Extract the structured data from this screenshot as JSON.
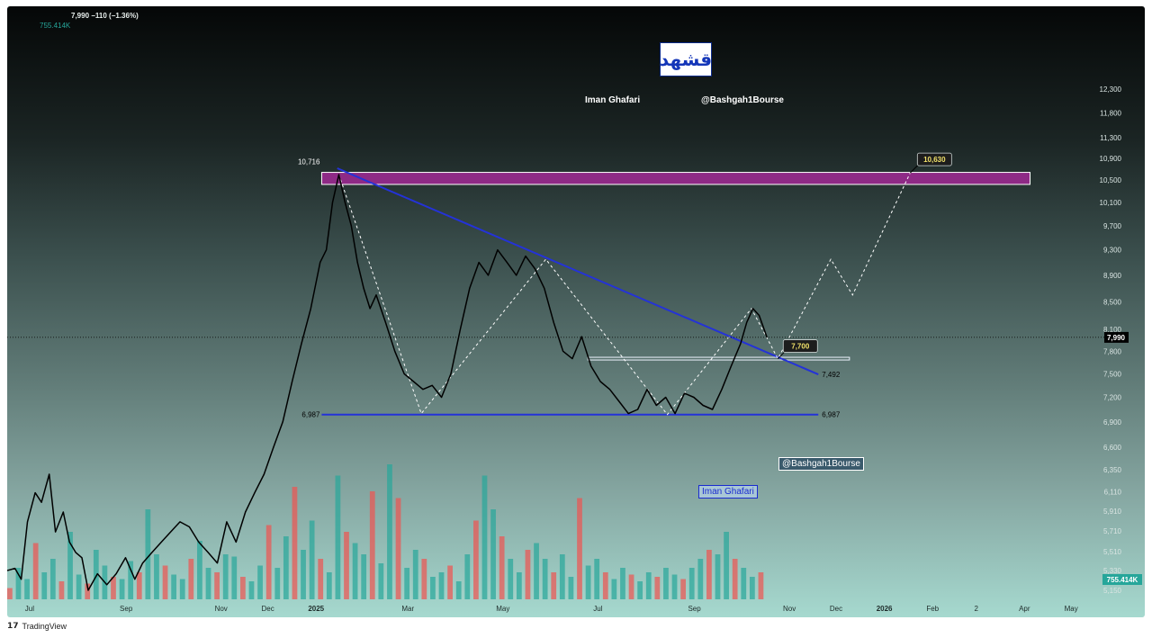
{
  "header": {
    "price_change": "7,990  −110 (−1.36%)",
    "volume": "755.414K"
  },
  "logo_text": "قشهد",
  "watermarks": {
    "author": "Iman Ghafari",
    "channel": "@Bashgah1Bourse",
    "channel_box": "@Bashgah1Bourse",
    "author_box": "Iman Ghafari"
  },
  "branding": {
    "icon": "tradingview-icon",
    "text": "TradingView"
  },
  "colors": {
    "price": "#000000",
    "trend_line": "#2432d8",
    "resistance_zone": "#8e2a86",
    "projection": "#ffffff",
    "vol_up": "#26a69a",
    "vol_down": "#ef5350",
    "current_price_tag": "#000000"
  },
  "chart_data": {
    "type": "line",
    "title": "",
    "x_axis_labels": [
      "Jul",
      "Sep",
      "Nov",
      "Dec",
      "2025",
      "Mar",
      "May",
      "Jul",
      "Sep",
      "Nov",
      "Dec",
      "2026",
      "Feb",
      "2",
      "Apr",
      "May"
    ],
    "y_axis_labels": [
      "12,300",
      "11,800",
      "11,300",
      "10,900",
      "10,500",
      "10,100",
      "9,700",
      "9,300",
      "8,900",
      "8,500",
      "8,100",
      "7,800",
      "7,500",
      "7,200",
      "6,900",
      "6,600",
      "6,350",
      "6,110",
      "5,910",
      "5,710",
      "5,510",
      "5,330",
      "5,150"
    ],
    "y_log_scale": true,
    "current_price": "7,990",
    "current_volume": "755.414K",
    "series": [
      {
        "values": [
          [
            "2024-06-27",
            5330
          ],
          [
            "2024-07-02",
            5350
          ],
          [
            "2024-07-06",
            5250
          ],
          [
            "2024-07-10",
            5800
          ],
          [
            "2024-07-15",
            6100
          ],
          [
            "2024-07-19",
            6000
          ],
          [
            "2024-07-24",
            6300
          ],
          [
            "2024-07-28",
            5700
          ],
          [
            "2024-08-02",
            5900
          ],
          [
            "2024-08-06",
            5600
          ],
          [
            "2024-08-10",
            5500
          ],
          [
            "2024-08-14",
            5450
          ],
          [
            "2024-08-18",
            5150
          ],
          [
            "2024-08-24",
            5300
          ],
          [
            "2024-08-30",
            5200
          ],
          [
            "2024-09-05",
            5300
          ],
          [
            "2024-09-11",
            5450
          ],
          [
            "2024-09-17",
            5250
          ],
          [
            "2024-09-22",
            5400
          ],
          [
            "2024-09-28",
            5500
          ],
          [
            "2024-10-04",
            5600
          ],
          [
            "2024-10-10",
            5700
          ],
          [
            "2024-10-16",
            5800
          ],
          [
            "2024-10-22",
            5750
          ],
          [
            "2024-10-28",
            5600
          ],
          [
            "2024-11-03",
            5500
          ],
          [
            "2024-11-09",
            5400
          ],
          [
            "2024-11-15",
            5800
          ],
          [
            "2024-11-21",
            5600
          ],
          [
            "2024-11-27",
            5900
          ],
          [
            "2024-12-03",
            6100
          ],
          [
            "2024-12-09",
            6300
          ],
          [
            "2024-12-15",
            6600
          ],
          [
            "2024-12-21",
            6900
          ],
          [
            "2024-12-27",
            7400
          ],
          [
            "2025-01-02",
            7900
          ],
          [
            "2025-01-08",
            8400
          ],
          [
            "2025-01-14",
            9100
          ],
          [
            "2025-01-18",
            9300
          ],
          [
            "2025-01-22",
            10100
          ],
          [
            "2025-01-26",
            10600
          ],
          [
            "2025-01-30",
            10100
          ],
          [
            "2025-02-03",
            9700
          ],
          [
            "2025-02-07",
            9100
          ],
          [
            "2025-02-11",
            8700
          ],
          [
            "2025-02-15",
            8400
          ],
          [
            "2025-02-19",
            8600
          ],
          [
            "2025-02-25",
            8200
          ],
          [
            "2025-03-03",
            7800
          ],
          [
            "2025-03-09",
            7500
          ],
          [
            "2025-03-15",
            7400
          ],
          [
            "2025-03-21",
            7300
          ],
          [
            "2025-03-27",
            7350
          ],
          [
            "2025-04-02",
            7200
          ],
          [
            "2025-04-08",
            7500
          ],
          [
            "2025-04-14",
            8100
          ],
          [
            "2025-04-20",
            8700
          ],
          [
            "2025-04-26",
            9100
          ],
          [
            "2025-05-02",
            8900
          ],
          [
            "2025-05-08",
            9300
          ],
          [
            "2025-05-14",
            9100
          ],
          [
            "2025-05-20",
            8900
          ],
          [
            "2025-05-26",
            9200
          ],
          [
            "2025-06-01",
            9000
          ],
          [
            "2025-06-07",
            8700
          ],
          [
            "2025-06-13",
            8200
          ],
          [
            "2025-06-19",
            7800
          ],
          [
            "2025-06-25",
            7700
          ],
          [
            "2025-07-01",
            8000
          ],
          [
            "2025-07-07",
            7600
          ],
          [
            "2025-07-13",
            7400
          ],
          [
            "2025-07-19",
            7300
          ],
          [
            "2025-07-25",
            7150
          ],
          [
            "2025-07-31",
            7000
          ],
          [
            "2025-08-06",
            7050
          ],
          [
            "2025-08-12",
            7300
          ],
          [
            "2025-08-18",
            7100
          ],
          [
            "2025-08-24",
            7200
          ],
          [
            "2025-08-30",
            7000
          ],
          [
            "2025-09-05",
            7250
          ],
          [
            "2025-09-11",
            7200
          ],
          [
            "2025-09-17",
            7100
          ],
          [
            "2025-09-23",
            7050
          ],
          [
            "2025-09-29",
            7300
          ],
          [
            "2025-10-05",
            7600
          ],
          [
            "2025-10-11",
            7900
          ],
          [
            "2025-10-15",
            8200
          ],
          [
            "2025-10-19",
            8400
          ],
          [
            "2025-10-23",
            8300
          ],
          [
            "2025-10-28",
            7990
          ]
        ]
      }
    ],
    "volume": [
      5,
      14,
      9,
      25,
      12,
      18,
      8,
      30,
      11,
      7,
      22,
      15,
      10,
      9,
      17,
      12,
      40,
      20,
      15,
      11,
      9,
      18,
      26,
      14,
      12,
      20,
      19,
      10,
      8,
      15,
      33,
      14,
      28,
      50,
      22,
      35,
      18,
      12,
      55,
      30,
      25,
      20,
      48,
      16,
      60,
      45,
      14,
      22,
      18,
      10,
      12,
      15,
      8,
      20,
      35,
      55,
      40,
      28,
      18,
      12,
      22,
      25,
      18,
      12,
      20,
      10,
      45,
      15,
      18,
      12,
      9,
      14,
      11,
      8,
      12,
      10,
      14,
      11,
      9,
      14,
      18,
      22,
      20,
      30,
      18,
      14,
      10,
      12
    ],
    "annotations": [
      {
        "type": "trendline",
        "from": [
          "2025-01-25",
          10716
        ],
        "to": [
          "2025-11-30",
          7492
        ],
        "label": "7,492"
      },
      {
        "type": "support",
        "level": 6987,
        "from": "2025-01-15",
        "to": "2025-11-30",
        "label": "6,987",
        "left_label": "6,987"
      },
      {
        "type": "zone",
        "from": "2025-01-15",
        "to": "2026-04-15",
        "low": 10420,
        "high": 10640,
        "top_label": "10,716"
      },
      {
        "type": "neckline",
        "level": 7700,
        "from": "2025-07-05",
        "to": "2025-12-20"
      },
      {
        "type": "projection_path",
        "points": [
          [
            "2025-01-26",
            10600
          ],
          [
            "2025-03-20",
            7000
          ],
          [
            "2025-06-08",
            9150
          ],
          [
            "2025-08-25",
            6987
          ],
          [
            "2025-10-18",
            8400
          ],
          [
            "2025-11-04",
            7700
          ],
          [
            "2025-12-08",
            9150
          ],
          [
            "2025-12-22",
            8600
          ],
          [
            "2026-01-28",
            10630
          ]
        ]
      },
      {
        "type": "tag",
        "label": "10,630"
      },
      {
        "type": "tag",
        "label": "7,700"
      }
    ]
  }
}
